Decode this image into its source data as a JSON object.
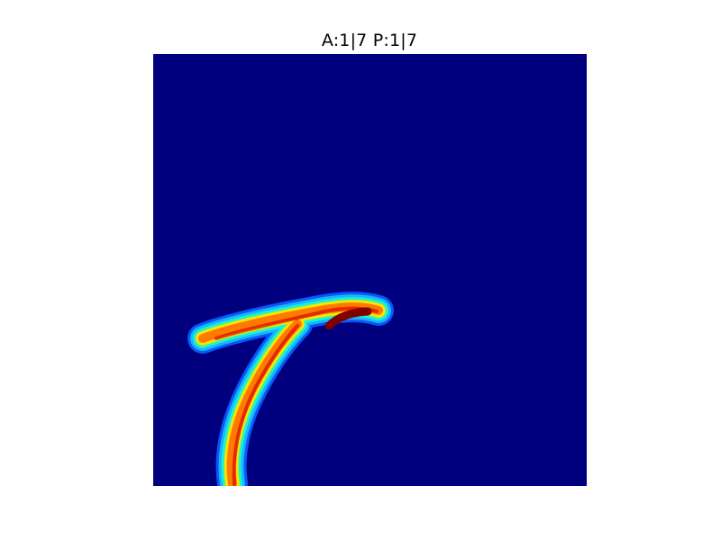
{
  "figure": {
    "title": "A:1|7 P:1|7"
  },
  "colors": {
    "background": "#00007F",
    "low_cyan": "#18B4FF",
    "mid_green": "#18F4D0",
    "yellow": "#F5E500",
    "orange": "#FF7A00",
    "red": "#D40000",
    "dark_red": "#800000"
  }
}
